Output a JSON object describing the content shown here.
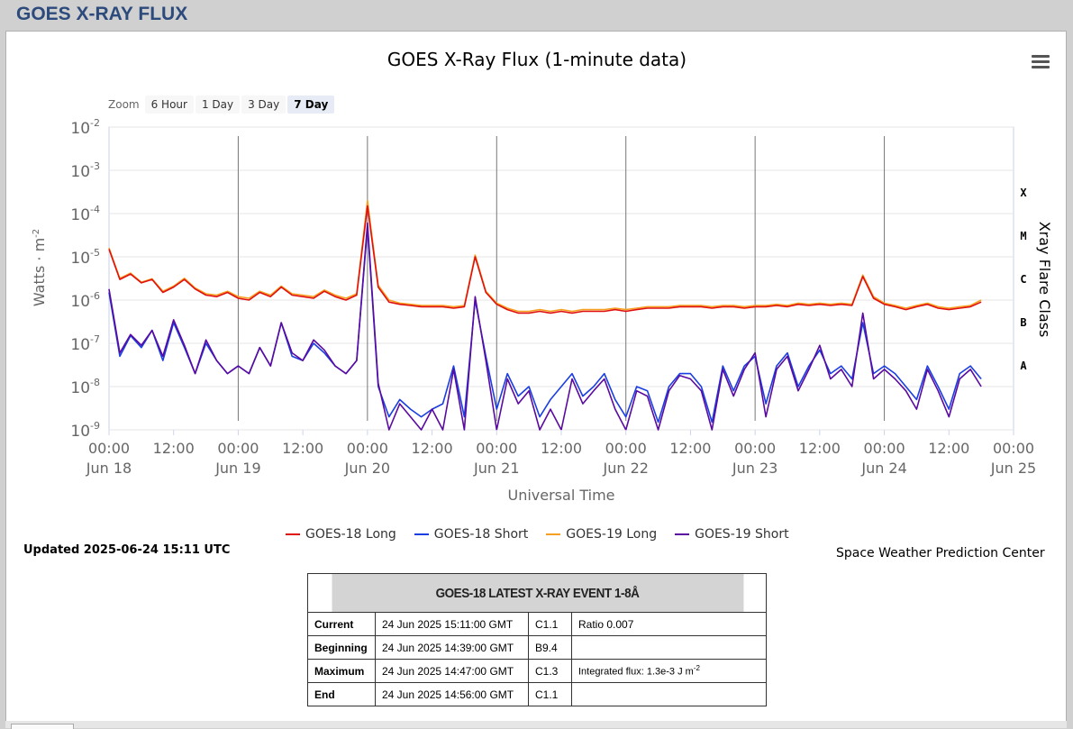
{
  "header": {
    "title": "GOES X-RAY FLUX"
  },
  "zoom": {
    "label": "Zoom",
    "buttons": [
      "6 Hour",
      "1 Day",
      "3 Day",
      "7 Day"
    ],
    "active": "7 Day"
  },
  "updated": "Updated 2025-06-24 15:11 UTC",
  "credit": "Space Weather Prediction Center",
  "colors": {
    "goes18_long": "#e01010",
    "goes18_short": "#1a3ee0",
    "goes19_long": "#f5a020",
    "goes19_short": "#5a0aa0",
    "plot_border": "#c7d2e6"
  },
  "chart_data": {
    "type": "line",
    "title": "GOES X-Ray Flux (1-minute data)",
    "xlabel": "Universal Time",
    "ylabel": "Watts · m",
    "ylabel_sup": "-2",
    "y2label": "Xray Flare Class",
    "yscale": "log",
    "ylim": [
      1e-09,
      0.01
    ],
    "x_range_days": [
      "2025-06-18 00:00",
      "2025-06-25 00:00"
    ],
    "y_ticks": [
      {
        "base": "10",
        "exp": "-2"
      },
      {
        "base": "10",
        "exp": "-3"
      },
      {
        "base": "10",
        "exp": "-4"
      },
      {
        "base": "10",
        "exp": "-5"
      },
      {
        "base": "10",
        "exp": "-6"
      },
      {
        "base": "10",
        "exp": "-7"
      },
      {
        "base": "10",
        "exp": "-8"
      },
      {
        "base": "10",
        "exp": "-9"
      }
    ],
    "flare_classes": [
      "X",
      "M",
      "C",
      "B",
      "A"
    ],
    "x_ticks": [
      {
        "time": "00:00",
        "date": "Jun 18"
      },
      {
        "time": "12:00",
        "date": ""
      },
      {
        "time": "00:00",
        "date": "Jun 19"
      },
      {
        "time": "12:00",
        "date": ""
      },
      {
        "time": "00:00",
        "date": "Jun 20"
      },
      {
        "time": "12:00",
        "date": ""
      },
      {
        "time": "00:00",
        "date": "Jun 21"
      },
      {
        "time": "12:00",
        "date": ""
      },
      {
        "time": "00:00",
        "date": "Jun 22"
      },
      {
        "time": "12:00",
        "date": ""
      },
      {
        "time": "00:00",
        "date": "Jun 23"
      },
      {
        "time": "12:00",
        "date": ""
      },
      {
        "time": "00:00",
        "date": "Jun 24"
      },
      {
        "time": "12:00",
        "date": ""
      },
      {
        "time": "00:00",
        "date": "Jun 25"
      }
    ],
    "series_x_hours": [
      0,
      2,
      4,
      6,
      8,
      10,
      12,
      14,
      16,
      18,
      20,
      22,
      24,
      26,
      28,
      30,
      32,
      34,
      36,
      38,
      40,
      42,
      44,
      46,
      48,
      50,
      52,
      54,
      56,
      58,
      60,
      62,
      64,
      66,
      68,
      70,
      72,
      74,
      76,
      78,
      80,
      82,
      84,
      86,
      88,
      90,
      92,
      94,
      96,
      98,
      100,
      102,
      104,
      106,
      108,
      110,
      112,
      114,
      116,
      118,
      120,
      122,
      124,
      126,
      128,
      130,
      132,
      134,
      136,
      138,
      140,
      142,
      144,
      146,
      148,
      150,
      152,
      154,
      156,
      158,
      160,
      162
    ],
    "series": [
      {
        "name": "GOES-18 Long",
        "color": "#e01010",
        "values": [
          1.5e-05,
          3e-06,
          4e-06,
          2.5e-06,
          3e-06,
          1.5e-06,
          2e-06,
          3e-06,
          1.8e-06,
          1.3e-06,
          1.2e-06,
          1.5e-06,
          1.1e-06,
          1e-06,
          1.5e-06,
          1.2e-06,
          2e-06,
          1.3e-06,
          1.2e-06,
          1.1e-06,
          1.6e-06,
          1.2e-06,
          1e-06,
          1.3e-06,
          0.00015,
          2e-06,
          9e-07,
          8e-07,
          7.5e-07,
          7e-07,
          7e-07,
          7e-07,
          6.5e-07,
          7e-07,
          1e-05,
          1.5e-06,
          8e-07,
          6e-07,
          5e-07,
          5e-07,
          5.5e-07,
          5e-07,
          5.5e-07,
          5e-07,
          5.5e-07,
          5.5e-07,
          5.5e-07,
          6e-07,
          5.5e-07,
          6e-07,
          6.5e-07,
          6.5e-07,
          6.5e-07,
          7e-07,
          7e-07,
          7e-07,
          6.5e-07,
          7e-07,
          7e-07,
          6.5e-07,
          7e-07,
          7e-07,
          7.5e-07,
          7e-07,
          8e-07,
          7.5e-07,
          8e-07,
          7.5e-07,
          8e-07,
          7.5e-07,
          3.5e-06,
          1.1e-06,
          8e-07,
          7e-07,
          6e-07,
          7e-07,
          8e-07,
          6.5e-07,
          6e-07,
          6.5e-07,
          7e-07,
          9e-07
        ]
      },
      {
        "name": "GOES-18 Short",
        "color": "#1a3ee0",
        "values": [
          1.5e-06,
          5e-08,
          1.5e-07,
          8e-08,
          2e-07,
          4e-08,
          3e-07,
          8e-08,
          2e-08,
          1e-07,
          4e-08,
          2e-08,
          3e-08,
          2e-08,
          8e-08,
          3e-08,
          3e-07,
          5e-08,
          4e-08,
          1e-07,
          6e-08,
          3e-08,
          2e-08,
          4e-08,
          5e-05,
          1e-08,
          2e-09,
          5e-09,
          3e-09,
          2e-09,
          3e-09,
          4e-09,
          3e-08,
          2e-09,
          1e-06,
          5e-08,
          3e-09,
          2e-08,
          6e-09,
          1e-08,
          2e-09,
          5e-09,
          1e-08,
          2e-08,
          6e-09,
          1e-08,
          2e-08,
          5e-09,
          2e-09,
          1e-08,
          8e-09,
          1.5e-09,
          1e-08,
          2e-08,
          2e-08,
          1e-08,
          1.5e-09,
          3e-08,
          8e-09,
          3e-08,
          5e-08,
          4e-09,
          3e-08,
          6e-08,
          1e-08,
          3e-08,
          7e-08,
          2e-08,
          3e-08,
          1.5e-08,
          3e-07,
          2e-08,
          3e-08,
          2e-08,
          1e-08,
          5e-09,
          3e-08,
          1e-08,
          3e-09,
          2e-08,
          3e-08,
          1.5e-08
        ]
      },
      {
        "name": "GOES-19 Long",
        "color": "#f5a020",
        "values": [
          1.6e-05,
          3.2e-06,
          4.2e-06,
          2.6e-06,
          3.1e-06,
          1.6e-06,
          2.1e-06,
          3.2e-06,
          1.9e-06,
          1.4e-06,
          1.3e-06,
          1.6e-06,
          1.2e-06,
          1.1e-06,
          1.6e-06,
          1.3e-06,
          2.1e-06,
          1.4e-06,
          1.3e-06,
          1.2e-06,
          1.7e-06,
          1.3e-06,
          1.1e-06,
          1.4e-06,
          0.0002,
          2.2e-06,
          1e-06,
          8.5e-07,
          8e-07,
          7.5e-07,
          7.5e-07,
          7.5e-07,
          7e-07,
          7.5e-07,
          1.1e-05,
          1.6e-06,
          8.5e-07,
          6.5e-07,
          5.5e-07,
          5.5e-07,
          6e-07,
          5.5e-07,
          6e-07,
          5.5e-07,
          6e-07,
          6e-07,
          6e-07,
          6.5e-07,
          6e-07,
          6.5e-07,
          7e-07,
          7e-07,
          7e-07,
          7.5e-07,
          7.5e-07,
          7.5e-07,
          7e-07,
          7.5e-07,
          7.5e-07,
          7e-07,
          7.5e-07,
          7.5e-07,
          8e-07,
          7.5e-07,
          8.5e-07,
          8e-07,
          8.5e-07,
          8e-07,
          8.5e-07,
          8e-07,
          3.8e-06,
          1.2e-06,
          8.5e-07,
          7.5e-07,
          6.5e-07,
          7.5e-07,
          8.5e-07,
          7e-07,
          6.5e-07,
          7e-07,
          7.5e-07,
          1e-06
        ]
      },
      {
        "name": "GOES-19 Short",
        "color": "#5a0aa0",
        "values": [
          1.8e-06,
          6e-08,
          1.6e-07,
          9e-08,
          2e-07,
          5e-08,
          3.5e-07,
          9e-08,
          2e-08,
          1.2e-07,
          4e-08,
          2e-08,
          3e-08,
          2e-08,
          8e-08,
          3e-08,
          3e-07,
          6e-08,
          4e-08,
          1.2e-07,
          7e-08,
          3e-08,
          2e-08,
          4e-08,
          6e-05,
          1.2e-08,
          1e-09,
          4e-09,
          2e-09,
          1e-09,
          3e-09,
          1e-09,
          2.5e-08,
          1e-09,
          1.2e-06,
          4e-08,
          1e-09,
          1.5e-08,
          4e-09,
          8e-09,
          1e-09,
          3e-09,
          1e-09,
          1.5e-08,
          4e-09,
          8e-09,
          1.5e-08,
          3e-09,
          1e-09,
          8e-09,
          6e-09,
          1e-09,
          8e-09,
          1.8e-08,
          1.5e-08,
          8e-09,
          1e-09,
          2.5e-08,
          6e-09,
          2.5e-08,
          6e-08,
          2e-09,
          2.5e-08,
          5e-08,
          8e-09,
          2.5e-08,
          9e-08,
          1.5e-08,
          2.5e-08,
          1e-08,
          5e-07,
          1.5e-08,
          2.5e-08,
          1.5e-08,
          8e-09,
          3e-09,
          2.5e-08,
          8e-09,
          2e-09,
          1.5e-08,
          2.5e-08,
          1e-08
        ]
      }
    ],
    "legend": [
      "GOES-18 Long",
      "GOES-18 Short",
      "GOES-19 Long",
      "GOES-19 Short"
    ]
  },
  "event_table": {
    "title": "GOES-18 LATEST X-RAY EVENT 1-8Å",
    "rows": [
      {
        "label": "Current",
        "time": "24 Jun 2025 15:11:00 GMT",
        "class": "C1.1",
        "note": "Ratio 0.007"
      },
      {
        "label": "Beginning",
        "time": "24 Jun 2025 14:39:00 GMT",
        "class": "B9.4",
        "note": ""
      },
      {
        "label": "Maximum",
        "time": "24 Jun 2025 14:47:00 GMT",
        "class": "C1.3",
        "note": "Integrated flux: 1.3e-3 J m",
        "note_sup": "-2"
      },
      {
        "label": "End",
        "time": "24 Jun 2025 14:56:00 GMT",
        "class": "C1.1",
        "note": ""
      }
    ]
  }
}
